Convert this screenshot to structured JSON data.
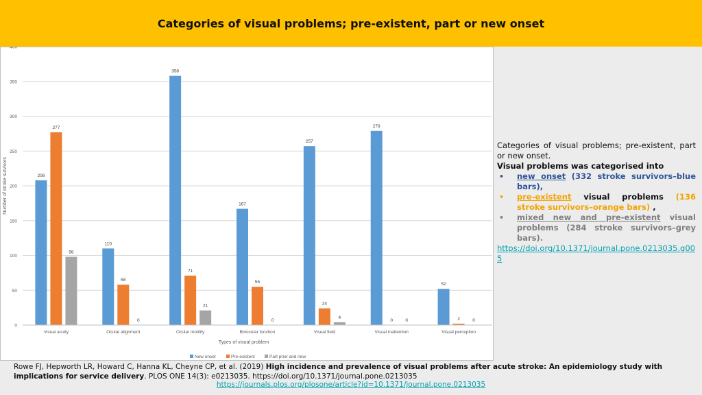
{
  "header": {
    "title": "Categories of visual problems; pre-existent, part or new onset"
  },
  "chart_data": {
    "type": "bar",
    "categories": [
      "Visual acuity",
      "Ocular alignment",
      "Ocular motility",
      "Binocular function",
      "Visual field",
      "Visual inattention",
      "Visual perception"
    ],
    "series": [
      {
        "name": "New onset",
        "color": "#5b9bd5",
        "values": [
          208,
          110,
          358,
          167,
          257,
          279,
          52
        ]
      },
      {
        "name": "Pre-existent",
        "color": "#ed7d31",
        "values": [
          277,
          58,
          71,
          55,
          24,
          0,
          2
        ]
      },
      {
        "name": "Part prior and new",
        "color": "#a5a5a5",
        "values": [
          98,
          0,
          21,
          0,
          4,
          0,
          0
        ]
      }
    ],
    "xlabel": "Types of visual problem",
    "ylabel": "Number of stroke survivors",
    "ylim": [
      0,
      400
    ],
    "yticks": [
      0,
      50,
      100,
      150,
      200,
      250,
      300,
      350,
      400
    ],
    "grid": true,
    "legend": "bottom"
  },
  "side": {
    "intro": "Categories of visual problems; pre-existent, part or new onset.",
    "intro_bold": "Visual problems was categorised into",
    "bullets": [
      {
        "term": "new onset",
        "rest": " (332 stroke survivors–blue bars),"
      },
      {
        "term": "pre-existent",
        "middle": " visual problems ",
        "rest": "(136 stroke survivors–orange bars)",
        "tail": " ,"
      },
      {
        "term": "mixed new and pre-existent",
        "rest": " visual problems (284 stroke survivors–grey bars)."
      }
    ],
    "bullet_glyph": "•",
    "link": "https://doi.org/10.1371/journal.pone.0213035.g005"
  },
  "citation": {
    "authors": "Rowe FJ, Hepworth LR, Howard C, Hanna KL, Cheyne CP, et al. (2019) ",
    "title": "High incidence and prevalence of visual problems after acute stroke: An epidemiology study with implications for service delivery",
    "journal": ". PLOS ONE 14(3): e0213035. https://doi.org/10.1371/journal.pone.0213035",
    "url": "https://journals.plos.org/plosone/article?id=10.1371/journal.pone.0213035"
  }
}
